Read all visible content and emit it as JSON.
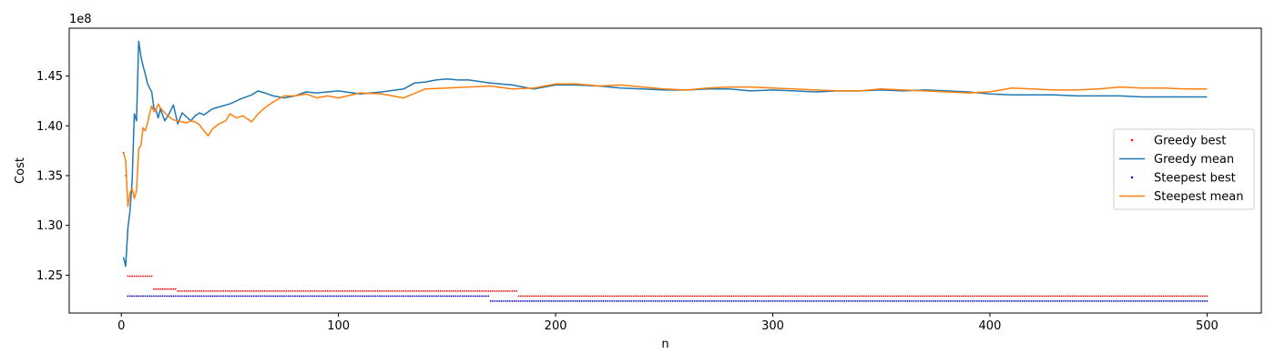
{
  "chart_data": {
    "type": "line",
    "title": "",
    "xlabel": "n",
    "ylabel": "Cost",
    "y_scale_label": "1e8",
    "y_multiplier": 100000000,
    "xlim": [
      -24,
      525
    ],
    "ylim": [
      1.212,
      1.498
    ],
    "x_ticks": [
      0,
      100,
      200,
      300,
      400,
      500
    ],
    "x_tick_labels": [
      "0",
      "100",
      "200",
      "300",
      "400",
      "500"
    ],
    "y_ticks": [
      1.25,
      1.3,
      1.35,
      1.4,
      1.45
    ],
    "y_tick_labels": [
      "1.25",
      "1.30",
      "1.35",
      "1.40",
      "1.45"
    ],
    "grid": false,
    "legend_position": "center-right",
    "legend": [
      "Greedy best",
      "Greedy mean",
      "Steepest best",
      "Steepest mean"
    ],
    "series": [
      {
        "name": "Greedy best",
        "style": "points",
        "color": "#ff0000",
        "steps": [
          [
            1,
            1.373
          ],
          [
            2,
            1.35
          ],
          [
            3,
            1.249
          ],
          [
            15,
            1.236
          ],
          [
            26,
            1.234
          ],
          [
            183,
            1.229
          ],
          [
            500,
            1.229
          ]
        ]
      },
      {
        "name": "Greedy mean",
        "style": "line",
        "color": "#1f77b4",
        "x": [
          1,
          2,
          3,
          4,
          5,
          6,
          7,
          8,
          9,
          10,
          11,
          12,
          13,
          14,
          15,
          16,
          17,
          18,
          20,
          22,
          24,
          26,
          28,
          30,
          32,
          34,
          36,
          38,
          40,
          42,
          45,
          50,
          55,
          60,
          63,
          66,
          70,
          75,
          80,
          85,
          90,
          95,
          100,
          110,
          120,
          130,
          135,
          140,
          145,
          150,
          155,
          160,
          170,
          180,
          190,
          200,
          210,
          220,
          230,
          240,
          250,
          260,
          270,
          280,
          290,
          300,
          310,
          320,
          330,
          340,
          350,
          360,
          370,
          380,
          390,
          400,
          410,
          420,
          430,
          440,
          450,
          460,
          470,
          480,
          490,
          500
        ],
        "y": [
          1.268,
          1.259,
          1.297,
          1.315,
          1.345,
          1.412,
          1.405,
          1.485,
          1.47,
          1.46,
          1.452,
          1.443,
          1.438,
          1.434,
          1.418,
          1.415,
          1.408,
          1.417,
          1.405,
          1.412,
          1.421,
          1.402,
          1.413,
          1.409,
          1.405,
          1.41,
          1.413,
          1.411,
          1.414,
          1.417,
          1.419,
          1.422,
          1.427,
          1.431,
          1.435,
          1.433,
          1.43,
          1.428,
          1.43,
          1.434,
          1.433,
          1.434,
          1.435,
          1.432,
          1.434,
          1.437,
          1.443,
          1.444,
          1.446,
          1.447,
          1.446,
          1.446,
          1.443,
          1.441,
          1.437,
          1.441,
          1.441,
          1.44,
          1.438,
          1.437,
          1.436,
          1.436,
          1.437,
          1.437,
          1.435,
          1.436,
          1.435,
          1.434,
          1.435,
          1.435,
          1.436,
          1.435,
          1.436,
          1.435,
          1.434,
          1.432,
          1.431,
          1.431,
          1.431,
          1.43,
          1.43,
          1.43,
          1.429,
          1.429,
          1.429,
          1.429
        ]
      },
      {
        "name": "Steepest best",
        "style": "points",
        "color": "#0000cc",
        "steps": [
          [
            3,
            1.229
          ],
          [
            170,
            1.224
          ],
          [
            500,
            1.224
          ]
        ]
      },
      {
        "name": "Steepest mean",
        "style": "line",
        "color": "#ff7f0e",
        "x": [
          1,
          2,
          3,
          4,
          5,
          6,
          7,
          8,
          9,
          10,
          11,
          12,
          13,
          14,
          15,
          16,
          17,
          18,
          20,
          22,
          24,
          26,
          28,
          30,
          32,
          34,
          36,
          38,
          40,
          42,
          45,
          48,
          50,
          53,
          56,
          60,
          63,
          66,
          70,
          75,
          80,
          85,
          90,
          95,
          100,
          110,
          120,
          130,
          140,
          150,
          160,
          170,
          180,
          190,
          200,
          210,
          220,
          230,
          240,
          250,
          260,
          270,
          280,
          290,
          300,
          310,
          320,
          330,
          340,
          350,
          360,
          370,
          380,
          390,
          400,
          410,
          420,
          430,
          440,
          450,
          460,
          470,
          480,
          490,
          500
        ],
        "y": [
          1.373,
          1.365,
          1.319,
          1.333,
          1.337,
          1.327,
          1.335,
          1.377,
          1.38,
          1.398,
          1.395,
          1.402,
          1.412,
          1.42,
          1.414,
          1.416,
          1.422,
          1.418,
          1.413,
          1.409,
          1.406,
          1.405,
          1.404,
          1.403,
          1.405,
          1.404,
          1.401,
          1.395,
          1.39,
          1.397,
          1.402,
          1.405,
          1.412,
          1.408,
          1.41,
          1.404,
          1.412,
          1.418,
          1.424,
          1.43,
          1.43,
          1.432,
          1.428,
          1.43,
          1.428,
          1.433,
          1.432,
          1.428,
          1.437,
          1.438,
          1.439,
          1.44,
          1.437,
          1.438,
          1.442,
          1.442,
          1.44,
          1.441,
          1.439,
          1.437,
          1.436,
          1.438,
          1.439,
          1.439,
          1.438,
          1.437,
          1.436,
          1.435,
          1.435,
          1.437,
          1.436,
          1.435,
          1.434,
          1.433,
          1.434,
          1.438,
          1.437,
          1.436,
          1.436,
          1.437,
          1.439,
          1.438,
          1.438,
          1.437,
          1.437
        ]
      }
    ]
  }
}
